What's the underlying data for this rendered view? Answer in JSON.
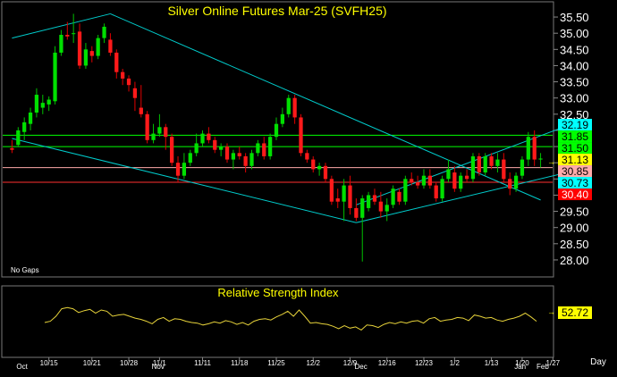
{
  "chart_data": {
    "type": "candlestick",
    "title": "Silver Online Futures Mar-25 (SVFH25)",
    "note": "No Gaps",
    "price_axis": {
      "ylim": [
        27.75,
        35.75
      ],
      "ticks": [
        "35.50",
        "35.00",
        "34.50",
        "34.00",
        "33.50",
        "33.00",
        "32.50",
        "32.00",
        "31.50",
        "31.00",
        "30.50",
        "30.00",
        "29.50",
        "29.00",
        "28.50",
        "28.00"
      ]
    },
    "x_tick_labels": [
      "10/15",
      "10/21",
      "10/28",
      "11/1",
      "11/11",
      "11/18",
      "11/25",
      "12/2",
      "12/9",
      "12/16",
      "12/23",
      "1/2",
      "1/13",
      "1/20",
      "1/27"
    ],
    "month_labels": [
      "Oct",
      "Nov",
      "Dec",
      "Jan",
      "Feb"
    ],
    "period_label": "Day",
    "price_tags": [
      {
        "label": "32.19",
        "value": 32.19,
        "bg": "#00ffff",
        "fg": "#000000"
      },
      {
        "label": "31.85",
        "value": 31.85,
        "bg": "#00ff00",
        "fg": "#000000"
      },
      {
        "label": "31.50",
        "value": 31.5,
        "bg": "#00ff00",
        "fg": "#000000"
      },
      {
        "label": "31.13",
        "value": 31.13,
        "bg": "#ffff00",
        "fg": "#000000"
      },
      {
        "label": "30.85",
        "value": 30.85,
        "bg": "#ffaaaa",
        "fg": "#000000"
      },
      {
        "label": "30.73",
        "value": 30.73,
        "bg": "#00ffff",
        "fg": "#000000"
      },
      {
        "label": "30.40",
        "value": 30.4,
        "bg": "#ff0000",
        "fg": "#ffffff"
      }
    ],
    "horizontal_lines": [
      {
        "value": 31.85,
        "color": "#00ff00"
      },
      {
        "value": 31.5,
        "color": "#00ff00"
      },
      {
        "value": 30.85,
        "color": "#ffaaaa"
      },
      {
        "value": 30.4,
        "color": "#ff3030"
      }
    ],
    "trendlines": [
      {
        "from": [
          0,
          34.85
        ],
        "to": [
          16,
          35.6
        ],
        "color": "#00cccc"
      },
      {
        "from": [
          16,
          35.6
        ],
        "to": [
          86,
          29.85
        ],
        "color": "#00cccc"
      },
      {
        "from": [
          0,
          31.75
        ],
        "to": [
          56,
          29.15
        ],
        "color": "#00cccc"
      },
      {
        "from": [
          56,
          29.15
        ],
        "to": [
          91,
          30.73
        ],
        "color": "#00cccc"
      },
      {
        "from": [
          56,
          29.7
        ],
        "to": [
          91,
          32.19
        ],
        "color": "#00cccc"
      }
    ],
    "candles": [
      {
        "o": 31.45,
        "h": 31.7,
        "l": 31.3,
        "c": 31.4
      },
      {
        "o": 31.55,
        "h": 32.1,
        "l": 31.5,
        "c": 32.0
      },
      {
        "o": 31.95,
        "h": 32.4,
        "l": 31.7,
        "c": 32.25
      },
      {
        "o": 32.2,
        "h": 32.7,
        "l": 32.0,
        "c": 32.55
      },
      {
        "o": 32.55,
        "h": 33.3,
        "l": 32.4,
        "c": 33.1
      },
      {
        "o": 32.7,
        "h": 33.1,
        "l": 32.5,
        "c": 32.85
      },
      {
        "o": 32.8,
        "h": 33.05,
        "l": 32.6,
        "c": 32.95
      },
      {
        "o": 32.9,
        "h": 34.6,
        "l": 32.8,
        "c": 34.4
      },
      {
        "o": 34.4,
        "h": 35.1,
        "l": 34.3,
        "c": 34.95
      },
      {
        "o": 34.95,
        "h": 35.35,
        "l": 34.8,
        "c": 34.9
      },
      {
        "o": 35.0,
        "h": 35.6,
        "l": 34.7,
        "c": 35.0
      },
      {
        "o": 35.05,
        "h": 35.3,
        "l": 33.9,
        "c": 34.0
      },
      {
        "o": 34.0,
        "h": 34.7,
        "l": 33.9,
        "c": 34.5
      },
      {
        "o": 34.45,
        "h": 34.6,
        "l": 34.1,
        "c": 34.3
      },
      {
        "o": 34.3,
        "h": 34.95,
        "l": 34.2,
        "c": 34.85
      },
      {
        "o": 34.85,
        "h": 35.3,
        "l": 34.7,
        "c": 35.2
      },
      {
        "o": 34.8,
        "h": 35.0,
        "l": 34.3,
        "c": 34.4
      },
      {
        "o": 34.4,
        "h": 34.5,
        "l": 33.6,
        "c": 33.8
      },
      {
        "o": 33.8,
        "h": 33.9,
        "l": 33.4,
        "c": 33.6
      },
      {
        "o": 33.6,
        "h": 33.7,
        "l": 33.2,
        "c": 33.4
      },
      {
        "o": 33.3,
        "h": 33.5,
        "l": 32.6,
        "c": 33.0
      },
      {
        "o": 32.7,
        "h": 33.4,
        "l": 32.4,
        "c": 32.5
      },
      {
        "o": 32.5,
        "h": 32.6,
        "l": 31.6,
        "c": 31.7
      },
      {
        "o": 31.7,
        "h": 32.2,
        "l": 31.6,
        "c": 31.9
      },
      {
        "o": 31.9,
        "h": 32.5,
        "l": 31.8,
        "c": 32.1
      },
      {
        "o": 32.1,
        "h": 32.2,
        "l": 31.4,
        "c": 31.8
      },
      {
        "o": 31.8,
        "h": 31.9,
        "l": 30.9,
        "c": 31.0
      },
      {
        "o": 31.0,
        "h": 31.2,
        "l": 30.4,
        "c": 30.6
      },
      {
        "o": 30.6,
        "h": 31.3,
        "l": 30.5,
        "c": 31.0
      },
      {
        "o": 31.0,
        "h": 31.4,
        "l": 30.9,
        "c": 31.3
      },
      {
        "o": 31.3,
        "h": 31.9,
        "l": 31.2,
        "c": 31.6
      },
      {
        "o": 31.6,
        "h": 32.0,
        "l": 31.5,
        "c": 31.9
      },
      {
        "o": 31.9,
        "h": 32.1,
        "l": 31.6,
        "c": 31.7
      },
      {
        "o": 31.7,
        "h": 31.8,
        "l": 31.3,
        "c": 31.4
      },
      {
        "o": 31.4,
        "h": 31.6,
        "l": 31.2,
        "c": 31.5
      },
      {
        "o": 31.5,
        "h": 31.6,
        "l": 31.0,
        "c": 31.1
      },
      {
        "o": 31.1,
        "h": 31.4,
        "l": 30.8,
        "c": 31.3
      },
      {
        "o": 31.3,
        "h": 31.5,
        "l": 31.1,
        "c": 31.2
      },
      {
        "o": 31.2,
        "h": 31.3,
        "l": 30.7,
        "c": 30.9
      },
      {
        "o": 30.9,
        "h": 31.4,
        "l": 30.8,
        "c": 31.3
      },
      {
        "o": 31.3,
        "h": 31.7,
        "l": 31.2,
        "c": 31.6
      },
      {
        "o": 31.6,
        "h": 31.8,
        "l": 31.1,
        "c": 31.2
      },
      {
        "o": 31.2,
        "h": 31.9,
        "l": 31.1,
        "c": 31.8
      },
      {
        "o": 31.8,
        "h": 32.4,
        "l": 31.7,
        "c": 32.2
      },
      {
        "o": 32.2,
        "h": 32.7,
        "l": 32.1,
        "c": 32.5
      },
      {
        "o": 32.5,
        "h": 33.1,
        "l": 32.4,
        "c": 33.0
      },
      {
        "o": 33.0,
        "h": 33.1,
        "l": 32.2,
        "c": 32.4
      },
      {
        "o": 32.4,
        "h": 32.5,
        "l": 31.2,
        "c": 31.3
      },
      {
        "o": 31.3,
        "h": 31.4,
        "l": 31.0,
        "c": 31.1
      },
      {
        "o": 31.1,
        "h": 31.2,
        "l": 30.7,
        "c": 30.8
      },
      {
        "o": 30.8,
        "h": 31.0,
        "l": 30.6,
        "c": 30.9
      },
      {
        "o": 30.9,
        "h": 31.0,
        "l": 30.4,
        "c": 30.5
      },
      {
        "o": 30.5,
        "h": 30.6,
        "l": 29.7,
        "c": 29.8
      },
      {
        "o": 29.9,
        "h": 30.2,
        "l": 29.6,
        "c": 29.8
      },
      {
        "o": 29.8,
        "h": 30.5,
        "l": 29.2,
        "c": 30.3
      },
      {
        "o": 30.3,
        "h": 30.6,
        "l": 29.4,
        "c": 29.6
      },
      {
        "o": 29.6,
        "h": 29.9,
        "l": 29.2,
        "c": 29.3
      },
      {
        "o": 29.3,
        "h": 30.0,
        "l": 27.95,
        "c": 29.9
      },
      {
        "o": 29.6,
        "h": 30.1,
        "l": 29.5,
        "c": 30.0
      },
      {
        "o": 30.0,
        "h": 30.2,
        "l": 29.7,
        "c": 29.8
      },
      {
        "o": 29.8,
        "h": 30.1,
        "l": 29.3,
        "c": 29.5
      },
      {
        "o": 29.5,
        "h": 29.9,
        "l": 29.2,
        "c": 29.7
      },
      {
        "o": 29.7,
        "h": 30.3,
        "l": 29.6,
        "c": 30.2
      },
      {
        "o": 30.1,
        "h": 30.2,
        "l": 29.7,
        "c": 29.8
      },
      {
        "o": 29.8,
        "h": 30.6,
        "l": 29.7,
        "c": 30.5
      },
      {
        "o": 30.5,
        "h": 30.7,
        "l": 30.3,
        "c": 30.4
      },
      {
        "o": 30.4,
        "h": 30.6,
        "l": 30.2,
        "c": 30.3
      },
      {
        "o": 30.3,
        "h": 30.8,
        "l": 30.2,
        "c": 30.6
      },
      {
        "o": 30.6,
        "h": 30.8,
        "l": 30.2,
        "c": 30.3
      },
      {
        "o": 30.3,
        "h": 30.4,
        "l": 29.8,
        "c": 29.9
      },
      {
        "o": 29.9,
        "h": 30.6,
        "l": 29.8,
        "c": 30.5
      },
      {
        "o": 30.5,
        "h": 31.1,
        "l": 30.4,
        "c": 30.8
      },
      {
        "o": 30.7,
        "h": 30.9,
        "l": 30.1,
        "c": 30.2
      },
      {
        "o": 30.2,
        "h": 30.7,
        "l": 30.1,
        "c": 30.6
      },
      {
        "o": 30.6,
        "h": 30.8,
        "l": 30.4,
        "c": 30.5
      },
      {
        "o": 30.5,
        "h": 31.3,
        "l": 30.4,
        "c": 31.2
      },
      {
        "o": 31.2,
        "h": 31.3,
        "l": 30.6,
        "c": 30.7
      },
      {
        "o": 30.7,
        "h": 31.3,
        "l": 30.6,
        "c": 31.2
      },
      {
        "o": 31.2,
        "h": 31.3,
        "l": 30.8,
        "c": 30.9
      },
      {
        "o": 30.9,
        "h": 31.3,
        "l": 30.7,
        "c": 31.1
      },
      {
        "o": 31.1,
        "h": 31.3,
        "l": 30.4,
        "c": 30.5
      },
      {
        "o": 30.5,
        "h": 30.7,
        "l": 30.0,
        "c": 30.2
      },
      {
        "o": 30.2,
        "h": 30.7,
        "l": 30.1,
        "c": 30.6
      },
      {
        "o": 30.6,
        "h": 31.2,
        "l": 30.5,
        "c": 31.1
      },
      {
        "o": 31.1,
        "h": 31.95,
        "l": 30.9,
        "c": 31.8
      },
      {
        "o": 31.8,
        "h": 32.0,
        "l": 30.9,
        "c": 31.1
      },
      {
        "o": 31.1,
        "h": 31.3,
        "l": 30.85,
        "c": 31.13
      }
    ],
    "rsi": {
      "title": "Relative Strength Index",
      "value_label": "52.72",
      "ylim": [
        0,
        100
      ],
      "values": [
        50,
        52,
        60,
        72,
        74,
        72,
        66,
        69,
        71,
        65,
        70,
        68,
        60,
        62,
        63,
        60,
        57,
        55,
        52,
        48,
        55,
        58,
        52,
        56,
        55,
        52,
        50,
        49,
        46,
        48,
        51,
        49,
        53,
        51,
        47,
        50,
        46,
        52,
        55,
        56,
        54,
        59,
        63,
        68,
        60,
        70,
        60,
        49,
        50,
        48,
        47,
        44,
        40,
        45,
        41,
        43,
        38,
        46,
        45,
        42,
        47,
        50,
        48,
        51,
        49,
        52,
        53,
        49,
        56,
        58,
        52,
        54,
        55,
        58,
        57,
        53,
        62,
        60,
        57,
        58,
        54,
        52,
        55,
        57,
        60,
        65,
        59,
        52
      ]
    }
  }
}
